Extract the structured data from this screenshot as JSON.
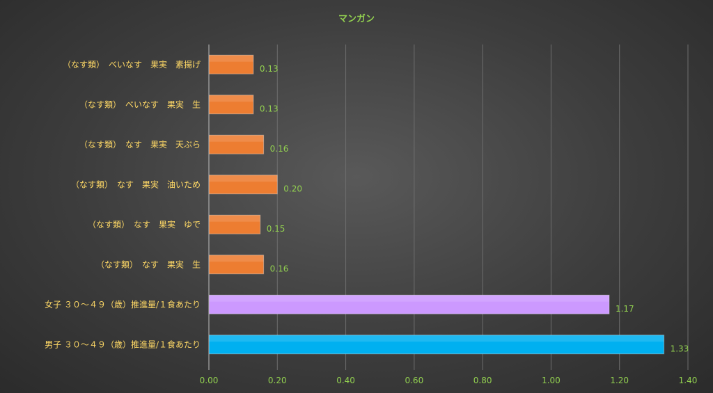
{
  "chart_data": {
    "type": "bar",
    "orientation": "horizontal",
    "title": "マンガン",
    "xlabel": "",
    "ylabel": "",
    "xlim": [
      0,
      1.4
    ],
    "ticks": [
      "0.00",
      "0.20",
      "0.40",
      "0.60",
      "0.80",
      "1.00",
      "1.20",
      "1.40"
    ],
    "grid": true,
    "legend": "none",
    "categories": [
      "（なす類）　べいなす　果実　素揚げ",
      "（なす類）　べいなす　果実　生",
      "（なす類）　なす　果実　天ぷら",
      "（なす類）　なす　果実　油いため",
      "（なす類）　なす　果実　ゆで",
      "（なす類）　なす　果実　生",
      "女子 ３０～４９（歳）推進量/１食あたり",
      "男子 ３０～４９（歳）推進量/１食あたり"
    ],
    "values": [
      0.13,
      0.13,
      0.16,
      0.2,
      0.15,
      0.16,
      1.17,
      1.33
    ],
    "value_labels": [
      "0.13",
      "0.13",
      "0.16",
      "0.20",
      "0.15",
      "0.16",
      "1.17",
      "1.33"
    ],
    "colors": [
      "#ed7d31",
      "#ed7d31",
      "#ed7d31",
      "#ed7d31",
      "#ed7d31",
      "#ed7d31",
      "#cc99ff",
      "#00b0f0"
    ]
  }
}
